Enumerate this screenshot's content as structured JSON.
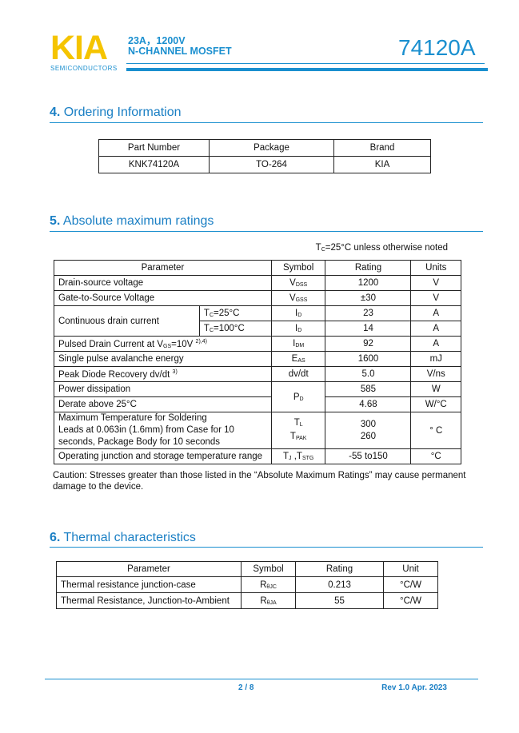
{
  "header": {
    "logo": "KIA",
    "logo_sub": "SEMICONDUCTORS",
    "line1": "23A，1200V",
    "line2": "N-CHANNEL MOSFET",
    "part": "74120A",
    "brand_color": "#1a8fcf",
    "logo_color": "#f5c400"
  },
  "ordering": {
    "num": "4.",
    "title": "Ordering Information",
    "headers": [
      "Part Number",
      "Package",
      "Brand"
    ],
    "rows": [
      [
        "KNK74120A",
        "TO-264",
        "KIA"
      ]
    ]
  },
  "ratings": {
    "num": "5.",
    "title": "Absolute maximum ratings",
    "cond": {
      "base": "T",
      "sub": "C",
      "rest": "=25°C unless otherwise noted"
    },
    "headers": [
      "Parameter",
      "Symbol",
      "Rating",
      "Units"
    ],
    "rows": [
      {
        "param": "Drain-source voltage",
        "sym": "V",
        "sym_sub": "DSS",
        "rating": "1200",
        "unit": "V"
      },
      {
        "param": "Gate-to-Source Voltage",
        "sym": "V",
        "sym_sub": "GSS",
        "rating": "±30",
        "unit": "V"
      },
      {
        "param": "Continuous drain current",
        "cond1": {
          "b": "T",
          "s": "C",
          "r": "=25°C"
        },
        "cond2": {
          "b": "T",
          "s": "C",
          "r": "=100°C"
        },
        "sym": "I",
        "sym_sub": "D",
        "rating1": "23",
        "rating2": "14",
        "unit": "A"
      },
      {
        "param": "Pulsed Drain Current at V",
        "param_sub": "GS",
        "param_rest": "=10V ",
        "param_sup": "2),4)",
        "sym": "I",
        "sym_sub": "DM",
        "rating": "92",
        "unit": "A"
      },
      {
        "param": "Single pulse avalanche energy",
        "sym": "E",
        "sym_sub": "AS",
        "rating": "1600",
        "unit": "mJ"
      },
      {
        "param": "Peak Diode Recovery dv/dt ",
        "param_sup": "3)",
        "sym": "dv/dt",
        "rating": "5.0",
        "unit": "V/ns"
      },
      {
        "param": "Power dissipation",
        "sym": "P",
        "sym_sub": "D",
        "rating": "585",
        "unit": "W"
      },
      {
        "param": "Derate above 25°C",
        "rating": "4.68",
        "unit": "W/°C"
      },
      {
        "param1": "Maximum Temperature for Soldering",
        "param2": "Leads at 0.063in (1.6mm) from Case for 10",
        "param3": "seconds, Package Body for 10 seconds",
        "sym1": "T",
        "sym1_sub": "L",
        "sym2": "T",
        "sym2_sub": "PAK",
        "rating1": "300",
        "rating2": "260",
        "unit": "° C"
      },
      {
        "param": "Operating junction and storage temperature range",
        "sym": "T",
        "sym_sub": "J",
        "sym_b": " ,T",
        "sym_b_sub": "STG",
        "rating": "-55 to150",
        "unit": "°C"
      }
    ],
    "caution1": "Caution: Stresses greater than those listed in the “Absolute Maximum Ratings” may cause permanent",
    "caution2": "damage to the device."
  },
  "thermal": {
    "num": "6.",
    "title": "Thermal characteristics",
    "headers": [
      "Parameter",
      "Symbol",
      "Rating",
      "Unit"
    ],
    "rows": [
      {
        "param": "Thermal resistance junction-case",
        "sym": "R",
        "sym_sub": "θJC",
        "rating": "0.213",
        "unit": "°C/W"
      },
      {
        "param": "Thermal Resistance, Junction-to-Ambient",
        "sym": "R",
        "sym_sub": "θJA",
        "rating": "55",
        "unit": "°C/W"
      }
    ]
  },
  "footer": {
    "page": "2 / 8",
    "rev": "Rev 1.0 Apr. 2023"
  }
}
